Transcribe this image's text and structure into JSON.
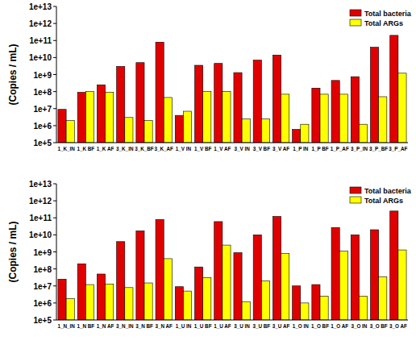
{
  "chart_data": [
    {
      "type": "bar",
      "log": "y",
      "y_label": "(Copies / mL)",
      "legend": "top-right",
      "ylim": [
        100000,
        10000000000000
      ],
      "yticks": [
        {
          "value": 100000,
          "label": "1e+5"
        },
        {
          "value": 1000000,
          "label": "1e+6"
        },
        {
          "value": 10000000,
          "label": "1e+7"
        },
        {
          "value": 100000000,
          "label": "1e+8"
        },
        {
          "value": 1000000000,
          "label": "1e+9"
        },
        {
          "value": 10000000000,
          "label": "1e+10"
        },
        {
          "value": 100000000000,
          "label": "1e+11"
        },
        {
          "value": 1000000000000,
          "label": "1e+12"
        },
        {
          "value": 10000000000000,
          "label": "1e+13"
        }
      ],
      "categories": [
        "1_K_IN",
        "1_K BF",
        "1_K AF",
        "3_K_IN",
        "3_K_BF",
        "3_K_AF",
        "1_V IN",
        "1_V BF",
        "1_V AF",
        "3_V IN",
        "3_V BF",
        "3_V AF",
        "1_P IN",
        "1_P BF",
        "1_P_AF",
        "3_P_IN",
        "3_P_BF",
        "3_P_AF"
      ],
      "series": [
        {
          "name": "Total bacteria",
          "color": "#e00000",
          "values": [
            9000000,
            90000000,
            250000000,
            3000000000,
            5000000000,
            80000000000,
            4000000,
            3500000000,
            4500000000,
            1300000000,
            7000000000,
            14000000000,
            600000,
            160000000,
            450000000,
            750000000,
            40000000000,
            200000000000
          ]
        },
        {
          "name": "Total ARGs",
          "color": "#ffff00",
          "values": [
            2000000,
            100000000,
            90000000,
            3000000,
            2000000,
            45000000,
            7000000,
            100000000,
            100000000,
            2500000,
            2500000,
            70000000,
            1200000,
            70000000,
            70000000,
            1200000,
            50000000,
            1200000000
          ]
        }
      ]
    },
    {
      "type": "bar",
      "log": "y",
      "y_label": "(Copies / mL)",
      "legend": "top-right",
      "ylim": [
        100000,
        10000000000000
      ],
      "yticks": [
        {
          "value": 100000,
          "label": "1e+5"
        },
        {
          "value": 1000000,
          "label": "1e+6"
        },
        {
          "value": 10000000,
          "label": "1e+7"
        },
        {
          "value": 100000000,
          "label": "1e+8"
        },
        {
          "value": 1000000000,
          "label": "1e+9"
        },
        {
          "value": 10000000000,
          "label": "1e+10"
        },
        {
          "value": 100000000000,
          "label": "1e+11"
        },
        {
          "value": 1000000000000,
          "label": "1e+12"
        },
        {
          "value": 10000000000000,
          "label": "1e+13"
        }
      ],
      "categories": [
        "1_N_IN",
        "1_N BF",
        "1_N AF",
        "3_N_IN",
        "3_N BF",
        "3_N AF",
        "1_U IN",
        "1_U BF",
        "1_U AF",
        "3_U IN",
        "3_U BF",
        "3_U AF",
        "1_O IN",
        "1_O BF",
        "1_O AF",
        "3_O IN",
        "3_O BF",
        "3_O AF"
      ],
      "series": [
        {
          "name": "Total bacteria",
          "color": "#e00000",
          "values": [
            25000000,
            200000000,
            50000000,
            4000000000,
            17000000000,
            80000000000,
            9000000,
            130000000,
            60000000000,
            900000000,
            10000000000,
            120000000000,
            10000000,
            12000000,
            27000000000,
            10000000000,
            20000000000,
            250000000000
          ]
        },
        {
          "name": "Total ARGs",
          "color": "#ffff00",
          "values": [
            1800000,
            12000000,
            13000000,
            8000000,
            15000000,
            400000000,
            5000000,
            30000000,
            2500000000,
            1200000,
            20000000,
            800000000,
            1000000,
            2500000,
            1100000000,
            2500000,
            35000000,
            1300000000
          ]
        }
      ]
    }
  ]
}
